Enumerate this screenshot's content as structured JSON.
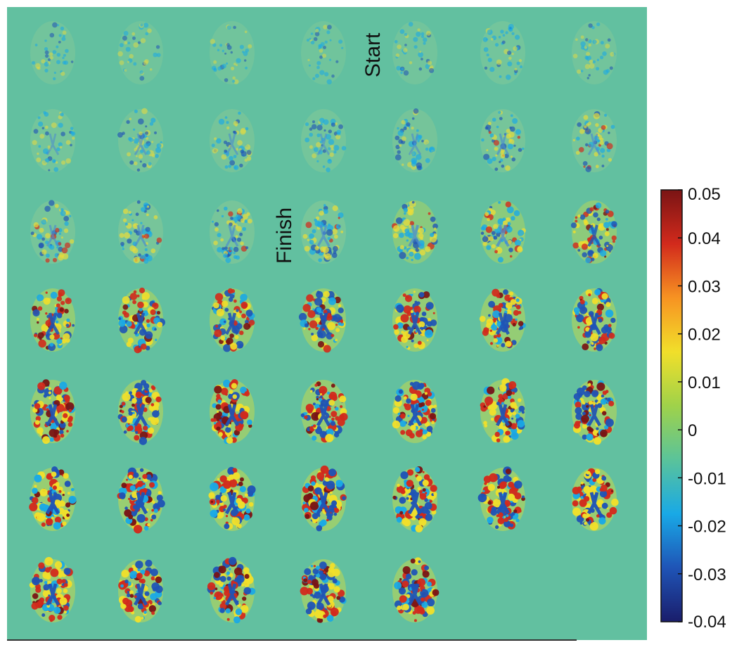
{
  "figure": {
    "description_type": "heatmap-mosaic",
    "grid": {
      "rows": 7,
      "cols": 7,
      "panel_count": 47
    },
    "background_color": "#62c0a0",
    "annotations": [
      {
        "text": "Start",
        "after_panel": 4
      },
      {
        "text": "Finish",
        "after_panel": 17
      }
    ]
  },
  "colorbar": {
    "min": -0.04,
    "max": 0.05,
    "ticks": [
      "0.05",
      "0.04",
      "0.03",
      "0.02",
      "0.01",
      "0",
      "-0.01",
      "-0.02",
      "-0.03",
      "-0.04"
    ],
    "tick_values": [
      0.05,
      0.04,
      0.03,
      0.02,
      0.01,
      0,
      -0.01,
      -0.02,
      -0.03,
      -0.04
    ],
    "colormap": [
      "#1a1d6b",
      "#1f54b6",
      "#19a9e6",
      "#5ac39a",
      "#9fd24a",
      "#f1df2a",
      "#f79322",
      "#d22a1c",
      "#7a1414"
    ]
  },
  "chart_data": {
    "type": "heatmap",
    "title": "",
    "xlabel": "",
    "ylabel": "",
    "colorbar_range": [
      -0.04,
      0.05
    ],
    "panels": 47,
    "intensity_per_panel": [
      0.15,
      0.1,
      0.12,
      0.1,
      0.15,
      0.2,
      0.15,
      0.25,
      0.3,
      0.3,
      0.25,
      0.3,
      0.35,
      0.35,
      0.35,
      0.4,
      0.4,
      0.45,
      0.55,
      0.6,
      0.65,
      0.8,
      0.8,
      0.8,
      0.8,
      0.85,
      0.85,
      0.85,
      0.9,
      0.9,
      0.9,
      0.9,
      0.9,
      0.9,
      0.9,
      0.95,
      0.95,
      0.95,
      0.95,
      0.95,
      0.95,
      0.95,
      0.9,
      0.9,
      0.9,
      0.9,
      0.9
    ]
  }
}
